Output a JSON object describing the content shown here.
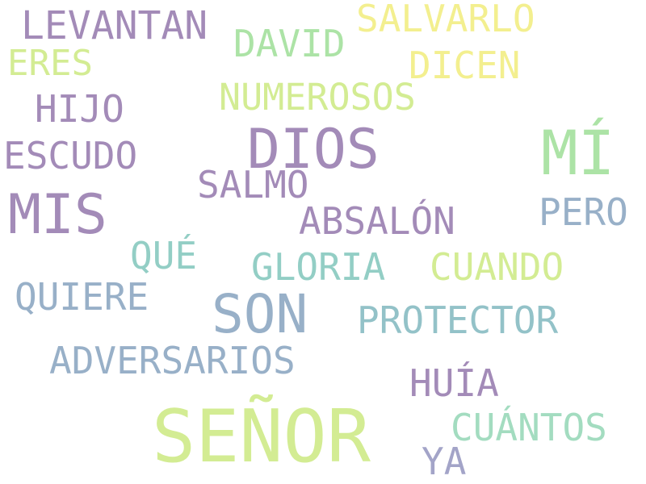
{
  "words": [
    {
      "text": "LEVANTAN",
      "color": "#a38bb8"
    },
    {
      "text": "SALVARLO",
      "color": "#f3ef8f"
    },
    {
      "text": "DAVID",
      "color": "#ace3a6"
    },
    {
      "text": "ERES",
      "color": "#d3ec93"
    },
    {
      "text": "DICEN",
      "color": "#f3ef8f"
    },
    {
      "text": "NUMEROSOS",
      "color": "#d3ec93"
    },
    {
      "text": "HIJO",
      "color": "#a38bb8"
    },
    {
      "text": "DIOS",
      "color": "#a38bb8"
    },
    {
      "text": "MÍ",
      "color": "#ace3a6"
    },
    {
      "text": "ESCUDO",
      "color": "#a38bb8"
    },
    {
      "text": "SALMO",
      "color": "#a38bb8"
    },
    {
      "text": "MIS",
      "color": "#a38bb8"
    },
    {
      "text": "PERO",
      "color": "#98b0c8"
    },
    {
      "text": "ABSALÓN",
      "color": "#a38bb8"
    },
    {
      "text": "QUÉ",
      "color": "#93cec5"
    },
    {
      "text": "GLORIA",
      "color": "#93cec5"
    },
    {
      "text": "CUANDO",
      "color": "#d3ec93"
    },
    {
      "text": "QUIERE",
      "color": "#98b0c8"
    },
    {
      "text": "SON",
      "color": "#98b0c8"
    },
    {
      "text": "PROTECTOR",
      "color": "#93c2c8"
    },
    {
      "text": "ADVERSARIOS",
      "color": "#98b0c8"
    },
    {
      "text": "HUÍA",
      "color": "#a38bb8"
    },
    {
      "text": "SEÑOR",
      "color": "#d3ec93"
    },
    {
      "text": "CUÁNTOS",
      "color": "#a3dcc0"
    },
    {
      "text": "YA",
      "color": "#a3a4c8"
    }
  ]
}
